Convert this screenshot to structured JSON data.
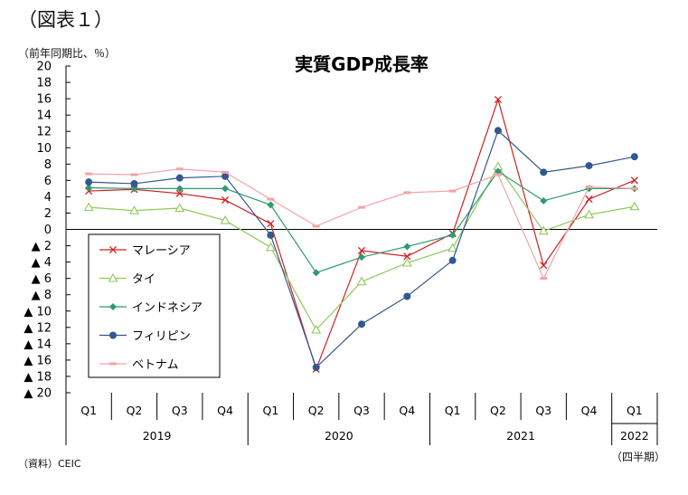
{
  "figure_label": "（図表１）",
  "unit_label": "（前年同期比、％）",
  "source_label": "（資料）CEIC",
  "period_note": "（四半期）",
  "chart_data": {
    "type": "line",
    "title": "実質GDP成長率",
    "ylim": [
      -20,
      20
    ],
    "yticks": [
      20,
      18,
      16,
      14,
      12,
      10,
      8,
      6,
      4,
      2,
      0,
      -2,
      -4,
      -6,
      -8,
      -10,
      -12,
      -14,
      -16,
      -18,
      -20
    ],
    "ytick_labels": [
      "20",
      "18",
      "16",
      "14",
      "12",
      "10",
      "8",
      "6",
      "4",
      "2",
      "0",
      "▲ 2",
      "▲ 4",
      "▲ 6",
      "▲ 8",
      "▲ 10",
      "▲ 12",
      "▲ 14",
      "▲ 16",
      "▲ 18",
      "▲ 20"
    ],
    "categories": [
      "Q1",
      "Q2",
      "Q3",
      "Q4",
      "Q1",
      "Q2",
      "Q3",
      "Q4",
      "Q1",
      "Q2",
      "Q3",
      "Q4",
      "Q1"
    ],
    "years": [
      {
        "label": "2019",
        "start": 0,
        "end": 3
      },
      {
        "label": "2020",
        "start": 4,
        "end": 7
      },
      {
        "label": "2021",
        "start": 8,
        "end": 11
      },
      {
        "label": "2022",
        "start": 12,
        "end": 12
      }
    ],
    "legend_position": "lower-left",
    "grid": false,
    "series": [
      {
        "name": "マレーシア",
        "marker": "x",
        "color": "#cc2222",
        "values": [
          4.7,
          4.9,
          4.4,
          3.6,
          0.7,
          -17.1,
          -2.6,
          -3.3,
          -0.5,
          15.9,
          -4.4,
          3.7,
          6.0
        ]
      },
      {
        "name": "タイ",
        "marker": "triangle",
        "color": "#8fc85a",
        "values": [
          2.7,
          2.3,
          2.6,
          1.1,
          -2.2,
          -12.3,
          -6.4,
          -4.1,
          -2.3,
          7.7,
          -0.2,
          1.8,
          2.8
        ]
      },
      {
        "name": "インドネシア",
        "marker": "diamond",
        "color": "#2e9a6f",
        "values": [
          5.1,
          5.0,
          5.0,
          5.0,
          3.0,
          -5.3,
          -3.4,
          -2.1,
          -0.7,
          7.1,
          3.5,
          5.0,
          5.0
        ]
      },
      {
        "name": "フィリピン",
        "marker": "circle",
        "color": "#33578f",
        "values": [
          5.8,
          5.6,
          6.3,
          6.5,
          -0.7,
          -16.9,
          -11.6,
          -8.2,
          -3.8,
          12.1,
          7.0,
          7.8,
          8.9
        ]
      },
      {
        "name": "ベトナム",
        "marker": "dash",
        "color": "#f2a3a8",
        "values": [
          6.8,
          6.7,
          7.4,
          7.0,
          3.7,
          0.4,
          2.7,
          4.5,
          4.7,
          6.7,
          -6.0,
          5.2,
          5.0
        ]
      }
    ]
  }
}
